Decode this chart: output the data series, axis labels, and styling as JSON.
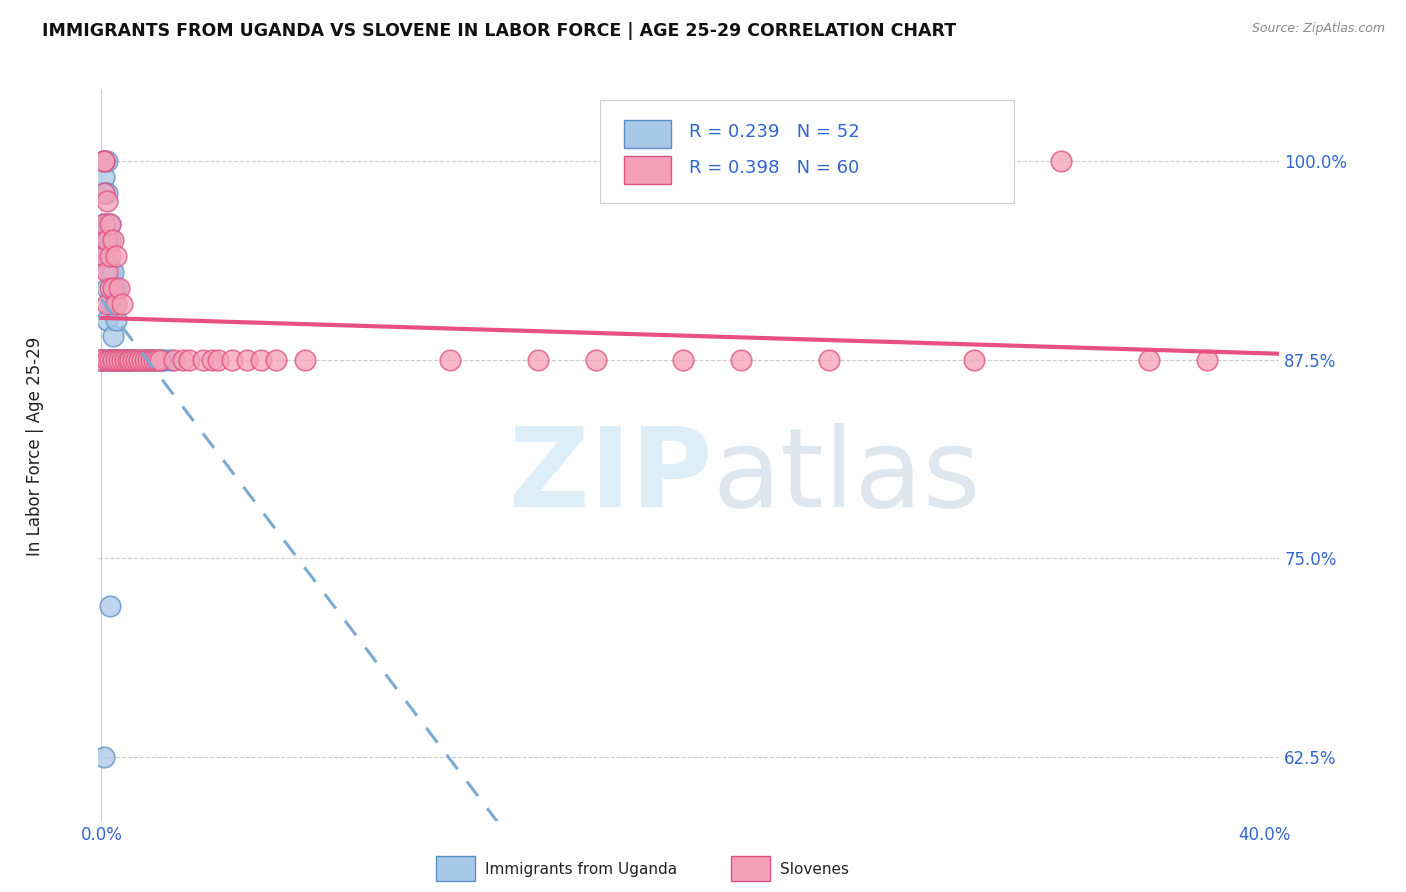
{
  "title": "IMMIGRANTS FROM UGANDA VS SLOVENE IN LABOR FORCE | AGE 25-29 CORRELATION CHART",
  "source": "Source: ZipAtlas.com",
  "ylabel": "In Labor Force | Age 25-29",
  "ytick_vals": [
    0.625,
    0.75,
    0.875,
    1.0
  ],
  "ytick_labels": [
    "62.5%",
    "75.0%",
    "87.5%",
    "100.0%"
  ],
  "xmin": -0.001,
  "xmax": 0.405,
  "ymin": 0.585,
  "ymax": 1.045,
  "legend_R1": "R = 0.239",
  "legend_N1": "N = 52",
  "legend_R2": "R = 0.398",
  "legend_N2": "N = 60",
  "legend_label1": "Immigrants from Uganda",
  "legend_label2": "Slovenes",
  "color_uganda": "#a8c8e8",
  "color_slovene": "#f4a0b8",
  "edge_uganda": "#5b8ec4",
  "edge_slovene": "#e05080",
  "trendline_color_uganda": "#7baad4",
  "trendline_color_slovene": "#e85080",
  "background_color": "#ffffff",
  "uganda_x": [
    0.0,
    0.0,
    0.001,
    0.001,
    0.001,
    0.001,
    0.001,
    0.001,
    0.001,
    0.001,
    0.002,
    0.002,
    0.002,
    0.002,
    0.002,
    0.002,
    0.002,
    0.003,
    0.003,
    0.003,
    0.003,
    0.003,
    0.003,
    0.004,
    0.004,
    0.004,
    0.004,
    0.005,
    0.005,
    0.005,
    0.005,
    0.006,
    0.006,
    0.007,
    0.007,
    0.008,
    0.009,
    0.01,
    0.01,
    0.011,
    0.012,
    0.013,
    0.015,
    0.016,
    0.017,
    0.018,
    0.02,
    0.021,
    0.022,
    0.024,
    0.003,
    0.001
  ],
  "uganda_y": [
    0.875,
    0.875,
    1.0,
    1.0,
    0.99,
    0.98,
    0.96,
    0.95,
    0.94,
    0.875,
    1.0,
    0.98,
    0.96,
    0.94,
    0.92,
    0.9,
    0.875,
    0.96,
    0.95,
    0.93,
    0.91,
    0.875,
    0.875,
    0.93,
    0.91,
    0.89,
    0.875,
    0.92,
    0.9,
    0.875,
    0.875,
    0.875,
    0.875,
    0.875,
    0.875,
    0.875,
    0.875,
    0.875,
    0.875,
    0.875,
    0.875,
    0.875,
    0.875,
    0.875,
    0.875,
    0.875,
    0.875,
    0.875,
    0.875,
    0.875,
    0.72,
    0.625
  ],
  "slovene_x": [
    0.0,
    0.0,
    0.001,
    0.001,
    0.001,
    0.001,
    0.001,
    0.002,
    0.002,
    0.002,
    0.002,
    0.002,
    0.003,
    0.003,
    0.003,
    0.003,
    0.004,
    0.004,
    0.004,
    0.005,
    0.005,
    0.005,
    0.006,
    0.006,
    0.007,
    0.007,
    0.008,
    0.009,
    0.01,
    0.011,
    0.012,
    0.013,
    0.014,
    0.015,
    0.016,
    0.017,
    0.018,
    0.019,
    0.02,
    0.025,
    0.028,
    0.03,
    0.035,
    0.038,
    0.04,
    0.045,
    0.05,
    0.055,
    0.06,
    0.07,
    0.12,
    0.15,
    0.17,
    0.2,
    0.22,
    0.25,
    0.3,
    0.33,
    0.36,
    0.38
  ],
  "slovene_y": [
    0.875,
    0.875,
    1.0,
    1.0,
    0.98,
    0.96,
    0.94,
    0.975,
    0.95,
    0.93,
    0.91,
    0.875,
    0.96,
    0.94,
    0.92,
    0.875,
    0.95,
    0.92,
    0.875,
    0.94,
    0.91,
    0.875,
    0.92,
    0.875,
    0.91,
    0.875,
    0.875,
    0.875,
    0.875,
    0.875,
    0.875,
    0.875,
    0.875,
    0.875,
    0.875,
    0.875,
    0.875,
    0.875,
    0.875,
    0.875,
    0.875,
    0.875,
    0.875,
    0.875,
    0.875,
    0.875,
    0.875,
    0.875,
    0.875,
    0.875,
    0.875,
    0.875,
    0.875,
    0.875,
    0.875,
    0.875,
    0.875,
    1.0,
    0.875,
    0.875
  ]
}
